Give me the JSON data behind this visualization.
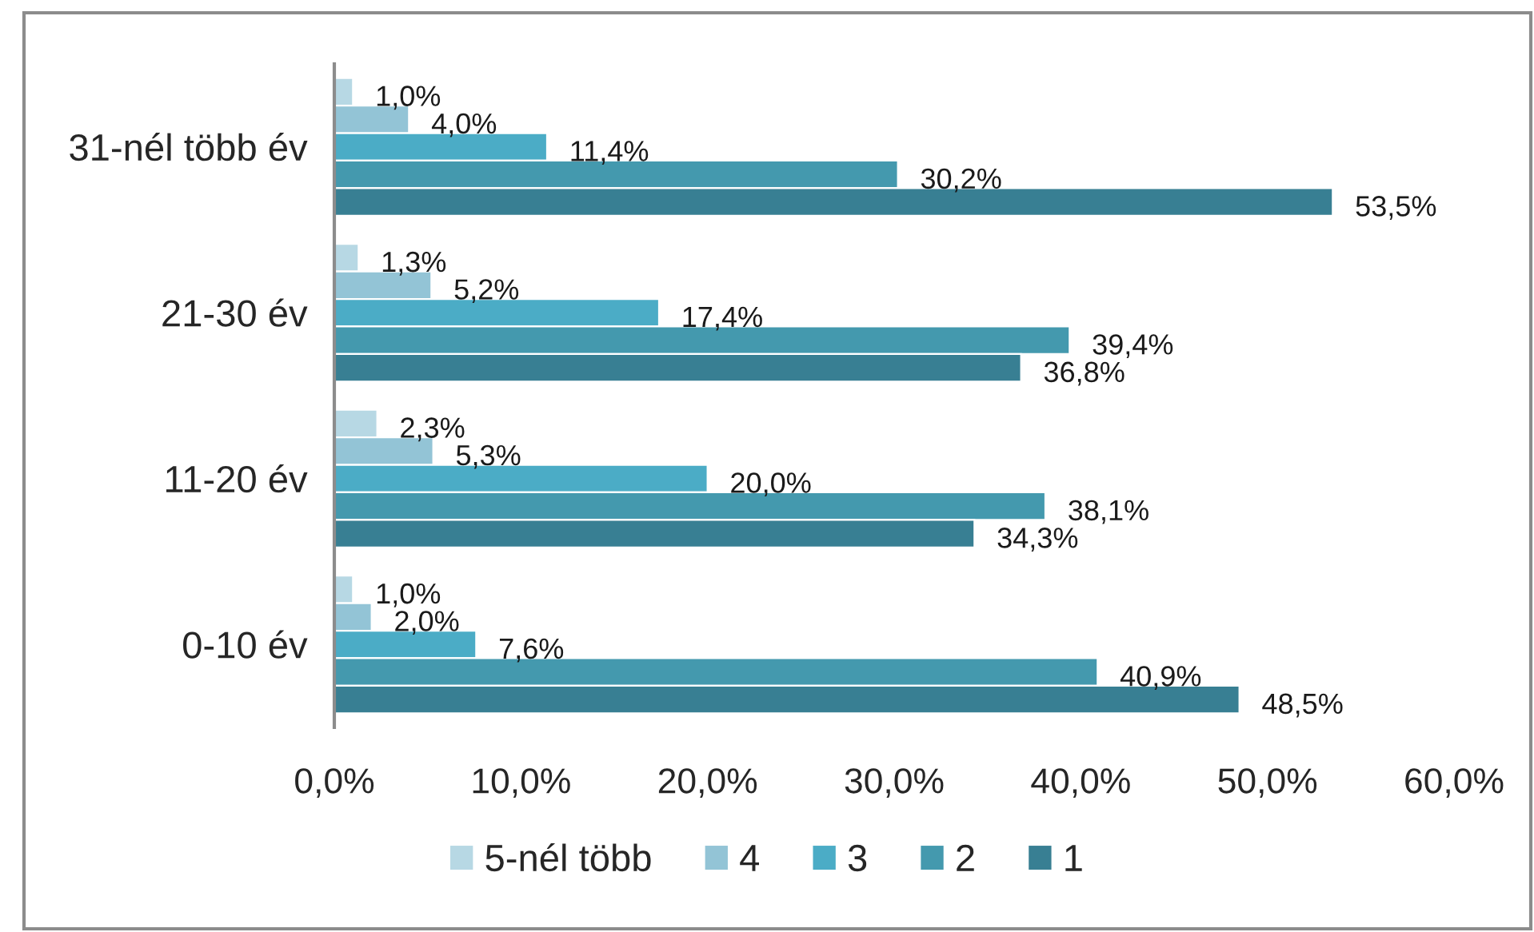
{
  "chart_data": {
    "type": "bar",
    "orientation": "horizontal",
    "categories": [
      "31-nél több év",
      "21-30 év",
      "11-20 év",
      "0-10 év"
    ],
    "series": [
      {
        "name": "5-nél több",
        "color": "#b7d8e4",
        "values": [
          1.0,
          1.3,
          2.3,
          1.0
        ],
        "value_labels": [
          "1,0%",
          "1,3%",
          "2,3%",
          "1,0%"
        ]
      },
      {
        "name": "4",
        "color": "#93c4d6",
        "values": [
          4.0,
          5.2,
          5.3,
          2.0
        ],
        "value_labels": [
          "4,0%",
          "5,2%",
          "5,3%",
          "2,0%"
        ]
      },
      {
        "name": "3",
        "color": "#4bacc6",
        "values": [
          11.4,
          17.4,
          20.0,
          7.6
        ],
        "value_labels": [
          "11,4%",
          "17,4%",
          "20,0%",
          "7,6%"
        ]
      },
      {
        "name": "2",
        "color": "#4499ae",
        "values": [
          30.2,
          39.4,
          38.1,
          40.9
        ],
        "value_labels": [
          "30,2%",
          "39,4%",
          "38,1%",
          "40,9%"
        ]
      },
      {
        "name": "1",
        "color": "#387f93",
        "values": [
          53.5,
          36.8,
          34.3,
          48.5
        ],
        "value_labels": [
          "53,5%",
          "36,8%",
          "34,3%",
          "48,5%"
        ]
      }
    ],
    "xlim": [
      0,
      60
    ],
    "xticks": [
      {
        "value": 0,
        "label": "0,0%"
      },
      {
        "value": 10,
        "label": "10,0%"
      },
      {
        "value": 20,
        "label": "20,0%"
      },
      {
        "value": 30,
        "label": "30,0%"
      },
      {
        "value": 40,
        "label": "40,0%"
      },
      {
        "value": 50,
        "label": "50,0%"
      },
      {
        "value": 60,
        "label": "60,0%"
      }
    ],
    "grid": false,
    "legend": "bottom"
  }
}
